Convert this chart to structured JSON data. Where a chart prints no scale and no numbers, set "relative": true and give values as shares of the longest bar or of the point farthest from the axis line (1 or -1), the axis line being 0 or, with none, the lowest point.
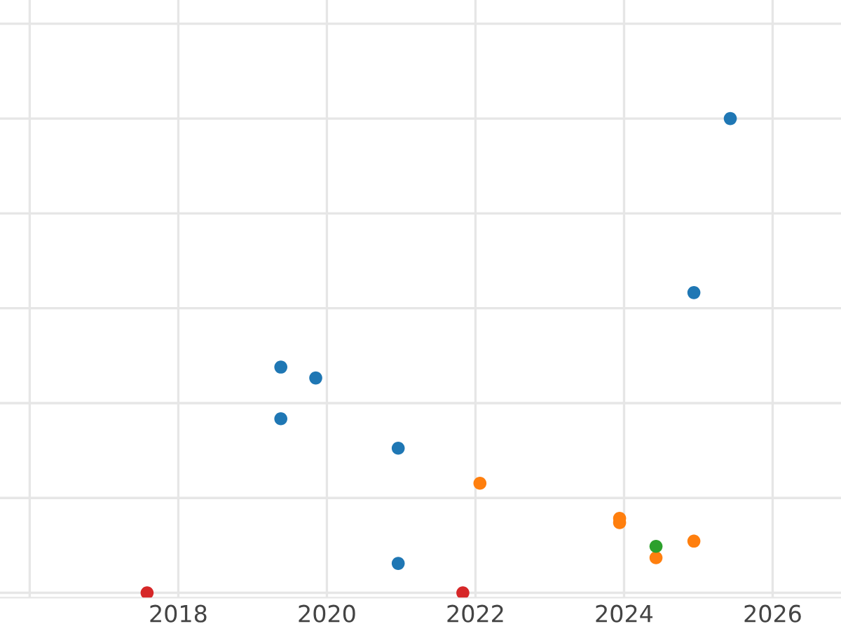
{
  "chart_data": {
    "type": "scatter",
    "relative": true,
    "grid": true,
    "marker": "circle",
    "legend": false,
    "xlim": [
      2015.6,
      2026.92
    ],
    "xticks": [
      {
        "value": 2016,
        "label": null
      },
      2018,
      2020,
      2022,
      2024,
      2026
    ],
    "series": [
      {
        "color": "#1f77b4",
        "x": [
          2025.43,
          2024.94,
          2019.38,
          2019.85,
          2019.38,
          2020.96,
          2020.96
        ],
        "values": [
          1,
          0.633,
          0.476,
          0.453,
          0.367,
          0.305,
          0.062
        ]
      },
      {
        "color": "#ff7f0e",
        "x": [
          2022.06,
          2023.94,
          2023.94,
          2024.94,
          2024.43
        ],
        "values": [
          0.231,
          0.157,
          0.148,
          0.109,
          0.074
        ]
      },
      {
        "color": "#2ca02c",
        "x": [
          2024.43
        ],
        "values": [
          0.098
        ]
      },
      {
        "color": "#d62728",
        "x": [
          2017.58,
          2021.83
        ],
        "values": [
          0,
          0
        ]
      }
    ]
  }
}
